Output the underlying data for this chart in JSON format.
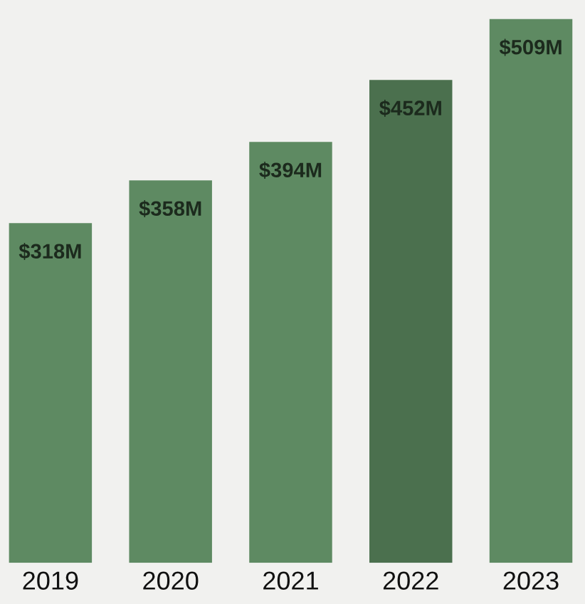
{
  "chart_data": {
    "type": "bar",
    "categories": [
      "2019",
      "2020",
      "2021",
      "2022",
      "2023"
    ],
    "values": [
      318,
      358,
      394,
      452,
      509
    ],
    "colors": [
      "#5e8a62",
      "#5e8a62",
      "#5e8a62",
      "#4b704e",
      "#5e8a62"
    ],
    "value_labels": [
      "$318M",
      "$358M",
      "$394M",
      "$452M",
      "$509M"
    ],
    "grid": false,
    "legend": false
  }
}
